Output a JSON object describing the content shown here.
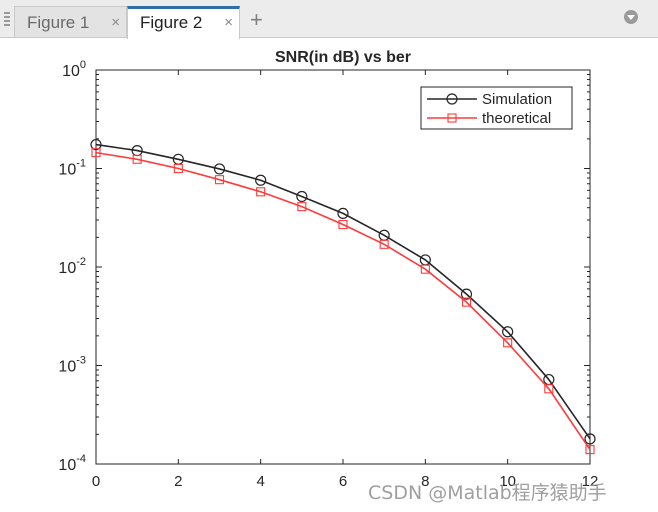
{
  "tabs": [
    {
      "label": "Figure 1",
      "close": "×",
      "active": false
    },
    {
      "label": "Figure 2",
      "close": "×",
      "active": true
    }
  ],
  "add_tab_glyph": "+",
  "watermark": "CSDN @Matlab程序猿助手",
  "chart_data": {
    "type": "line",
    "title": "SNR(in dB) vs ber",
    "xlabel": "",
    "ylabel": "",
    "yscale": "log",
    "xlim": [
      0,
      12
    ],
    "ylim": [
      0.0001,
      1
    ],
    "xticks": [
      0,
      2,
      4,
      6,
      8,
      10,
      12
    ],
    "xtick_labels": [
      "0",
      "2",
      "4",
      "6",
      "8",
      "10",
      "12"
    ],
    "yticks": [
      1,
      0.1,
      0.01,
      0.001,
      0.0001
    ],
    "ytick_labels": [
      {
        "base": "10",
        "exp": "0"
      },
      {
        "base": "10",
        "exp": "-1"
      },
      {
        "base": "10",
        "exp": "-2"
      },
      {
        "base": "10",
        "exp": "-3"
      },
      {
        "base": "10",
        "exp": "-4"
      }
    ],
    "grid": false,
    "legend_position": "top-right",
    "x": [
      0,
      1,
      2,
      3,
      4,
      5,
      6,
      7,
      8,
      9,
      10,
      11,
      12
    ],
    "series": [
      {
        "name": "Simulation",
        "color": "#262626",
        "marker": "circle",
        "values": [
          0.175,
          0.152,
          0.124,
          0.099,
          0.076,
          0.052,
          0.035,
          0.021,
          0.0118,
          0.0053,
          0.0022,
          0.00072,
          0.00018
        ]
      },
      {
        "name": "theoretical",
        "color": "#ff3b3b",
        "marker": "square",
        "values": [
          0.145,
          0.124,
          0.1,
          0.077,
          0.058,
          0.041,
          0.027,
          0.017,
          0.0095,
          0.0044,
          0.0017,
          0.00058,
          0.00014
        ]
      }
    ]
  }
}
